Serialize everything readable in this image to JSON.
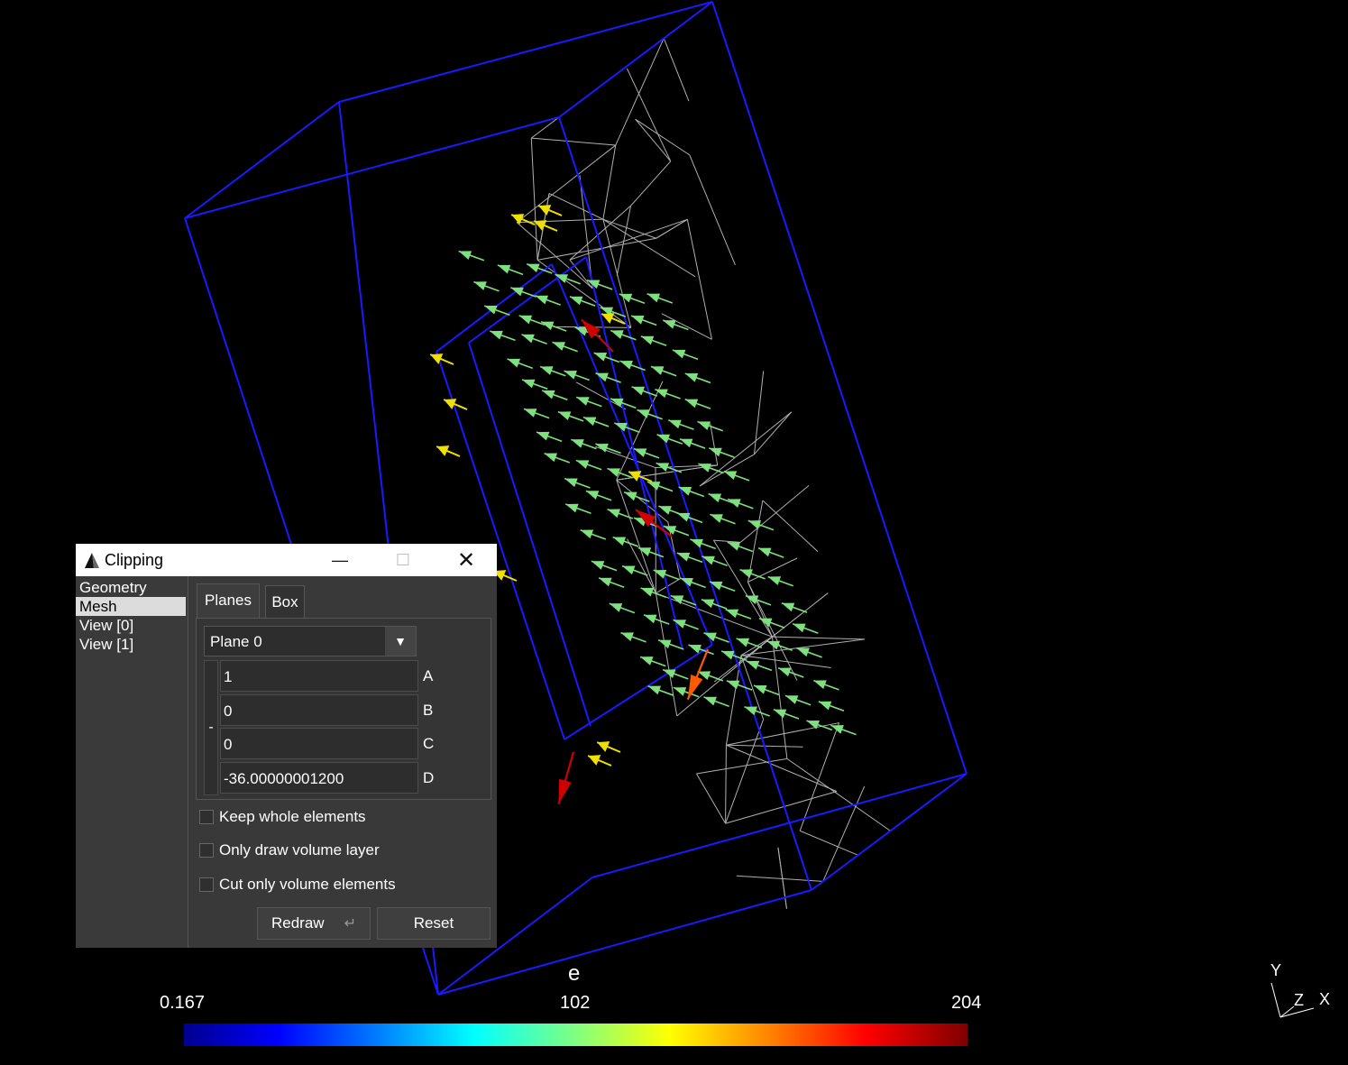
{
  "scene": {
    "colors": {
      "background": "#000000",
      "box_edges": "#1a1aff",
      "mesh_lines": "#ffffff",
      "arrow_low": "#7fe07f",
      "arrow_mid": "#f0e000",
      "arrow_high": "#d00000"
    }
  },
  "scale": {
    "title": "e",
    "min_label": "0.167",
    "mid_label": "102",
    "max_label": "204"
  },
  "axes": {
    "y": "Y",
    "z": "Z",
    "x": "X"
  },
  "clipping": {
    "title": "Clipping",
    "sidebar": [
      "Geometry",
      "Mesh",
      "View [0]",
      "View [1]"
    ],
    "selected": "Mesh",
    "tabs": [
      "Planes",
      "Box"
    ],
    "active_tab": "Planes",
    "plane_select": "Plane 0",
    "sign_label": "-",
    "coefficients": [
      {
        "label": "A",
        "value": "1"
      },
      {
        "label": "B",
        "value": "0"
      },
      {
        "label": "C",
        "value": "0"
      },
      {
        "label": "D",
        "value": "-36.00000001200"
      }
    ],
    "checkboxes": [
      {
        "label": "Keep whole elements",
        "checked": false
      },
      {
        "label": "Only draw volume layer",
        "checked": false
      },
      {
        "label": "Cut only volume elements",
        "checked": false
      }
    ],
    "redraw_label": "Redraw",
    "reset_label": "Reset"
  }
}
